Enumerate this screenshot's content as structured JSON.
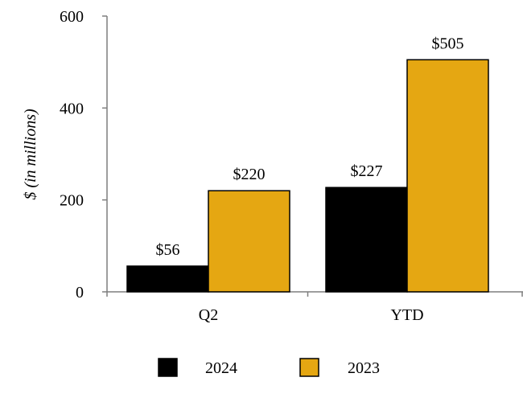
{
  "chart_data": {
    "type": "bar",
    "title": "",
    "xlabel": "",
    "ylabel": "$ (in millions)",
    "categories": [
      "Q2",
      "YTD"
    ],
    "series": [
      {
        "name": "2024",
        "color": "#000000",
        "values": [
          56,
          227
        ],
        "labels": [
          "$56",
          "$227"
        ]
      },
      {
        "name": "2023",
        "color": "#E5A712",
        "values": [
          220,
          505
        ],
        "labels": [
          "$220",
          "$505"
        ]
      }
    ],
    "ylim": [
      0,
      600
    ],
    "yticks": [
      0,
      200,
      400,
      600
    ],
    "grid": false,
    "legend_position": "bottom"
  }
}
